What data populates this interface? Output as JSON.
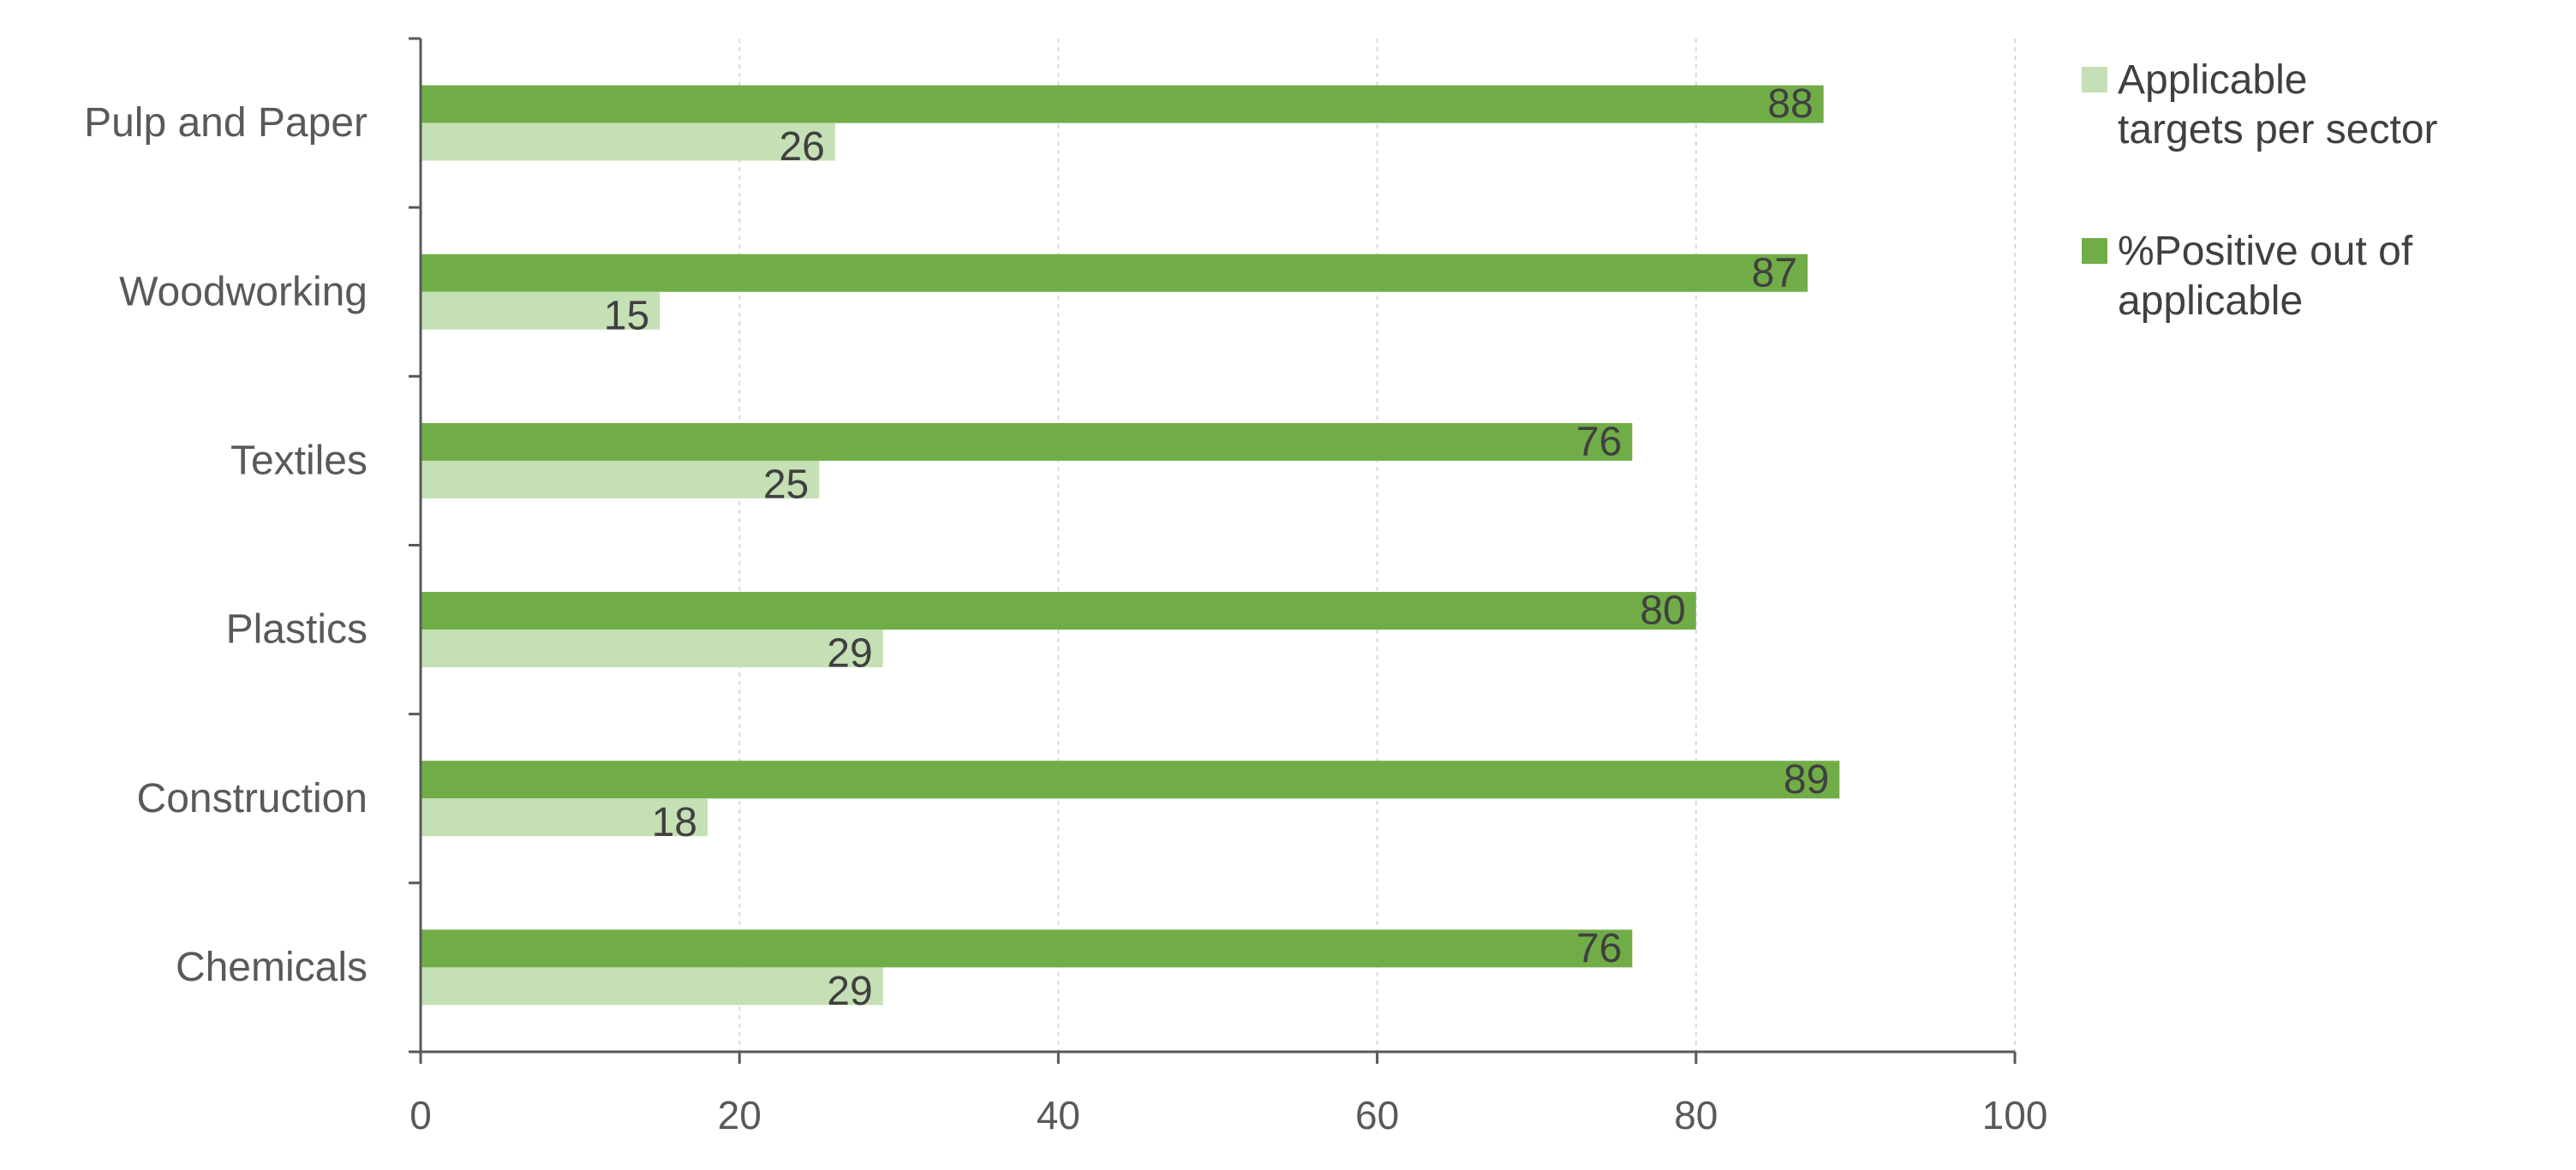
{
  "chart_data": {
    "type": "bar",
    "orientation": "horizontal",
    "categories": [
      "Pulp and Paper",
      "Woodworking",
      "Textiles",
      "Plastics",
      "Construction",
      "Chemicals"
    ],
    "series": [
      {
        "name": "%Positive out of applicable",
        "legend_lines": [
          "%Positive out of",
          "applicable"
        ],
        "color": "#70ad47",
        "values": [
          88,
          87,
          76,
          80,
          89,
          76
        ]
      },
      {
        "name": "Applicable targets per sector",
        "legend_lines": [
          "Applicable",
          "targets per sector"
        ],
        "color": "#c5e0b4",
        "values": [
          26,
          15,
          25,
          29,
          18,
          29
        ]
      }
    ],
    "xlim": [
      0,
      100
    ],
    "xticks": [
      0,
      20,
      40,
      60,
      80,
      100
    ],
    "grid": "vertical-dashed",
    "legend_position": "top-right",
    "legend_order": [
      1,
      0
    ],
    "title": "",
    "xlabel": "",
    "ylabel": ""
  }
}
